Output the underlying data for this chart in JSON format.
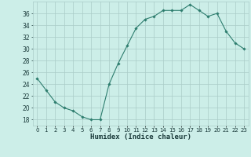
{
  "x": [
    0,
    1,
    2,
    3,
    4,
    5,
    6,
    7,
    8,
    9,
    10,
    11,
    12,
    13,
    14,
    15,
    16,
    17,
    18,
    19,
    20,
    21,
    22,
    23
  ],
  "y": [
    25,
    23,
    21,
    20,
    19.5,
    18.5,
    18,
    18,
    24,
    27.5,
    30.5,
    33.5,
    35,
    35.5,
    36.5,
    36.5,
    36.5,
    37.5,
    36.5,
    35.5,
    36,
    33,
    31,
    30
  ],
  "line_color": "#2d7d6e",
  "marker_color": "#2d7d6e",
  "bg_color": "#cceee8",
  "grid_color": "#aaccc8",
  "xlabel": "Humidex (Indice chaleur)",
  "xlim": [
    -0.5,
    23.5
  ],
  "ylim": [
    17,
    38
  ],
  "yticks": [
    18,
    20,
    22,
    24,
    26,
    28,
    30,
    32,
    34,
    36
  ],
  "font_color": "#1a3a3a",
  "figsize": [
    3.2,
    2.0
  ],
  "dpi": 100
}
